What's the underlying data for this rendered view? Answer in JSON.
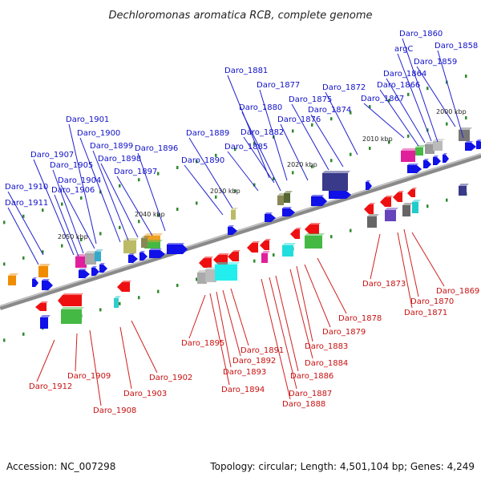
{
  "title": "Dechloromonas aromatica RCB, complete genome",
  "footer": {
    "accession": "Accession: NC_007298",
    "stats": "Topology: circular; Length: 4,501,104 bp; Genes: 4,249"
  },
  "colors": {
    "forward_label": "#1010c8",
    "reverse_label": "#c81010",
    "backbone": "#888888"
  },
  "scale_labels": [
    "2000 kbp",
    "2010 kbp",
    "2020 kbp",
    "2030 kbp",
    "2040 kbp",
    "2050 kbp"
  ],
  "top_genes": [
    "Daro_1858",
    "Daro_1859",
    "Daro_1860",
    "argC",
    "Daro_1864",
    "Daro_1866",
    "Daro_1867",
    "Daro_1872",
    "Daro_1874",
    "Daro_1875",
    "Daro_1876",
    "Daro_1877",
    "Daro_1880",
    "Daro_1881",
    "Daro_1882",
    "Daro_1885",
    "Daro_1889",
    "Daro_1890",
    "Daro_1896",
    "Daro_1897",
    "Daro_1898",
    "Daro_1899",
    "Daro_1900",
    "Daro_1901",
    "Daro_1904",
    "Daro_1905",
    "Daro_1906",
    "Daro_1907",
    "Daro_1910",
    "Daro_1911"
  ],
  "bottom_genes": [
    "Daro_1869",
    "Daro_1870",
    "Daro_1871",
    "Daro_1873",
    "Daro_1878",
    "Daro_1879",
    "Daro_1883",
    "Daro_1884",
    "Daro_1886",
    "Daro_1887",
    "Daro_1888",
    "Daro_1891",
    "Daro_1892",
    "Daro_1893",
    "Daro_1894",
    "Daro_1895",
    "Daro_1902",
    "Daro_1903",
    "Daro_1908",
    "Daro_1909",
    "Daro_1912"
  ]
}
